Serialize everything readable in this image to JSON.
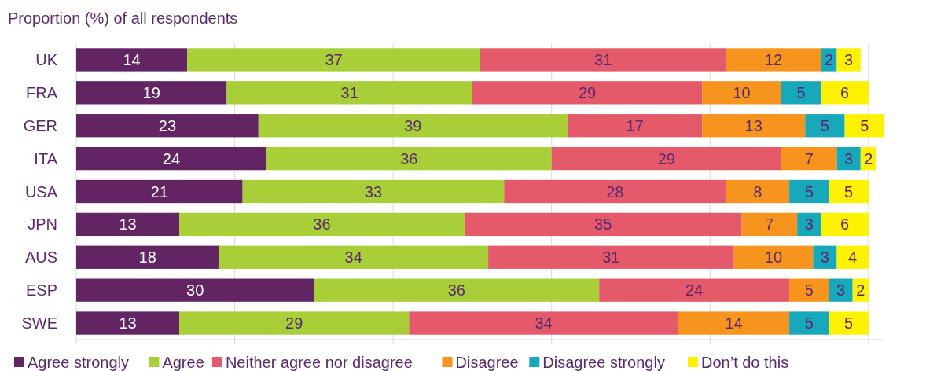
{
  "chart_data": {
    "type": "bar",
    "orientation": "horizontal",
    "stacked": true,
    "title": "Proportion (%) of all respondents",
    "categories": [
      "UK",
      "FRA",
      "GER",
      "ITA",
      "USA",
      "JPN",
      "AUS",
      "ESP",
      "SWE"
    ],
    "series": [
      {
        "name": "Agree strongly",
        "color": "#632464",
        "values": [
          14,
          19,
          23,
          24,
          21,
          13,
          18,
          30,
          13
        ]
      },
      {
        "name": "Agree",
        "color": "#a8cf38",
        "values": [
          37,
          31,
          39,
          36,
          33,
          36,
          34,
          36,
          29
        ]
      },
      {
        "name": "Neither agree nor disagree",
        "color": "#e55a6a",
        "values": [
          31,
          29,
          17,
          29,
          28,
          35,
          31,
          24,
          34
        ]
      },
      {
        "name": "Disagree",
        "color": "#f7941d",
        "values": [
          12,
          10,
          13,
          7,
          8,
          7,
          10,
          5,
          14
        ]
      },
      {
        "name": "Disagree strongly",
        "color": "#17a8bc",
        "values": [
          2,
          5,
          5,
          3,
          5,
          3,
          3,
          3,
          5
        ]
      },
      {
        "name": "Don’t do this",
        "color": "#fff200",
        "values": [
          3,
          6,
          5,
          2,
          5,
          6,
          4,
          2,
          5
        ]
      }
    ],
    "xlim": [
      0,
      102
    ],
    "xticks": [
      {
        "value": 0,
        "label": null
      },
      {
        "value": 20,
        "label": null
      },
      {
        "value": 40,
        "label": null
      },
      {
        "value": 60,
        "label": null
      },
      {
        "value": 80,
        "label": null
      },
      {
        "value": 100,
        "label": null
      }
    ],
    "tick_labels": "y",
    "grid": "x",
    "legend": "bottom",
    "data_labels": true
  }
}
